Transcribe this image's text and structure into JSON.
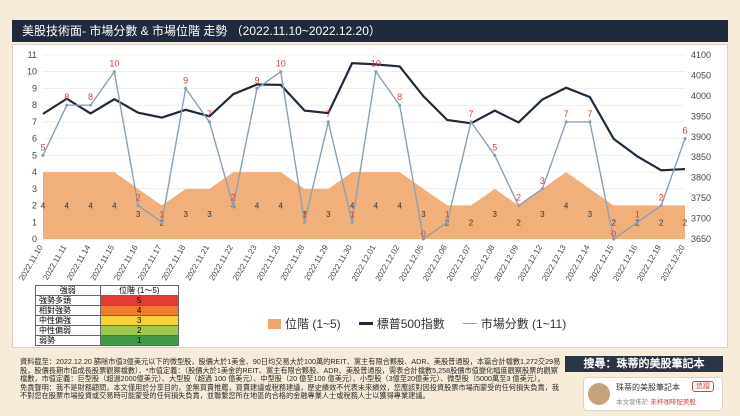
{
  "header": {
    "title": "美股技術面- 市場分數 & 市場位階 走勢 （2022.11.10~2022.12.20）"
  },
  "colors": {
    "area": "#f0a76a",
    "sp500": "#1f2a3c",
    "score": "#8aa0b4",
    "score_label": "#e23a3a"
  },
  "chart_data": {
    "type": "line",
    "x": [
      "2022.11.10",
      "2022.11.11",
      "2022.11.14",
      "2022.11.15",
      "2022.11.16",
      "2022.11.17",
      "2022.11.18",
      "2022.11.21",
      "2022.11.22",
      "2022.11.23",
      "2022.11.25",
      "2022.11.28",
      "2022.11.29",
      "2022.11.30",
      "2022.12.01",
      "2022.12.02",
      "2022.12.05",
      "2022.12.06",
      "2022.12.07",
      "2022.12.08",
      "2022.12.09",
      "2022.12.12",
      "2022.12.13",
      "2022.12.14",
      "2022.12.15",
      "2022.12.16",
      "2022.12.19",
      "2022.12.20"
    ],
    "series": [
      {
        "name": "位階 (1~5)",
        "axis": "left",
        "values": [
          4,
          4,
          4,
          4,
          3,
          2,
          3,
          3,
          4,
          4,
          4,
          3,
          3,
          4,
          4,
          4,
          3,
          2,
          2,
          3,
          2,
          3,
          4,
          3,
          2,
          2,
          2,
          2
        ]
      },
      {
        "name": "標普500指數",
        "axis": "right",
        "values": [
          3956,
          3993,
          3957,
          3992,
          3959,
          3947,
          3966,
          3950,
          4004,
          4028,
          4027,
          3964,
          3958,
          4080,
          4077,
          4072,
          3999,
          3941,
          3933,
          3964,
          3935,
          3991,
          4020,
          3997,
          3895,
          3852,
          3818,
          3821
        ]
      },
      {
        "name": "市場分數 (1~11)",
        "axis": "left",
        "values": [
          5,
          8,
          8,
          10,
          2,
          1,
          9,
          7,
          2,
          9,
          10,
          1,
          7,
          1,
          10,
          8,
          0,
          1,
          7,
          5,
          2,
          3,
          7,
          7,
          0,
          1,
          2,
          6
        ]
      }
    ],
    "ylim_left": [
      0,
      11
    ],
    "ylim_right": [
      3650,
      4100
    ],
    "yticks_left": [
      0,
      1,
      2,
      3,
      4,
      5,
      6,
      7,
      8,
      9,
      10,
      11
    ],
    "yticks_right": [
      3650,
      3700,
      3750,
      3800,
      3850,
      3900,
      3950,
      4000,
      4050,
      4100
    ]
  },
  "level_table": {
    "headers": [
      "強弱",
      "位階 (1～5)"
    ],
    "rows": [
      {
        "label": "強勢多頭",
        "value": "5",
        "color": "#e53935"
      },
      {
        "label": "相對強勢",
        "value": "4",
        "color": "#ef7d2e"
      },
      {
        "label": "中性偏強",
        "value": "3",
        "color": "#f5d23a"
      },
      {
        "label": "中性偏弱",
        "value": "2",
        "color": "#9dc84b"
      },
      {
        "label": "弱勢",
        "value": "1",
        "color": "#3e9b45"
      }
    ]
  },
  "legend": {
    "area": "位階 (1~5)",
    "sp500": "標普500指數",
    "score": "市場分數 (1~11)"
  },
  "footer": {
    "source": "資料截至：2022.12.20 篩除市值3億美元以下的微型股，股價大於1美金、90日均交易大於100萬的REIT、黨主有限合夥股、ADR、美股普通股，本篇合計檔數1,272交29易股，股價長期市值成長股票觀察檔數）、*市值定義：（股價大於1美金的REIT、黨主有限合夥股、ADR、美股普通股，需表合計檔數5,258股價市值變化幅度觀察股票的觀察檔數，市值定義：巨型股（超過2000億美元）、大型股（超過 100 億美元）、中型股（20 億至100 億美元）、小型股（3億至20億美元）、微型股（5000萬至3 億美元）。",
    "disclaimer": "免責聲明：我不是財務顧問，本文僅用於分享目的，並無買賣推薦，買賣建議或稅務建議，歷史績效不代表未來績效，您應該對因投資股票市場而蒙受的任何損失負責，我不對您在股票市場投資或交易時可能蒙受的任何損失負責，並聯繫您所在地區的合格的金融專業人士或稅務人士以獲得專業建議。"
  },
  "brand": {
    "search": "搜尋：珠蒂的美股筆記本",
    "name": "珠蒂的美股筆記本",
    "follow": "追蹤",
    "sub_prefix": "本文發佈於",
    "sub_link": "來杯咖啡配美股"
  }
}
